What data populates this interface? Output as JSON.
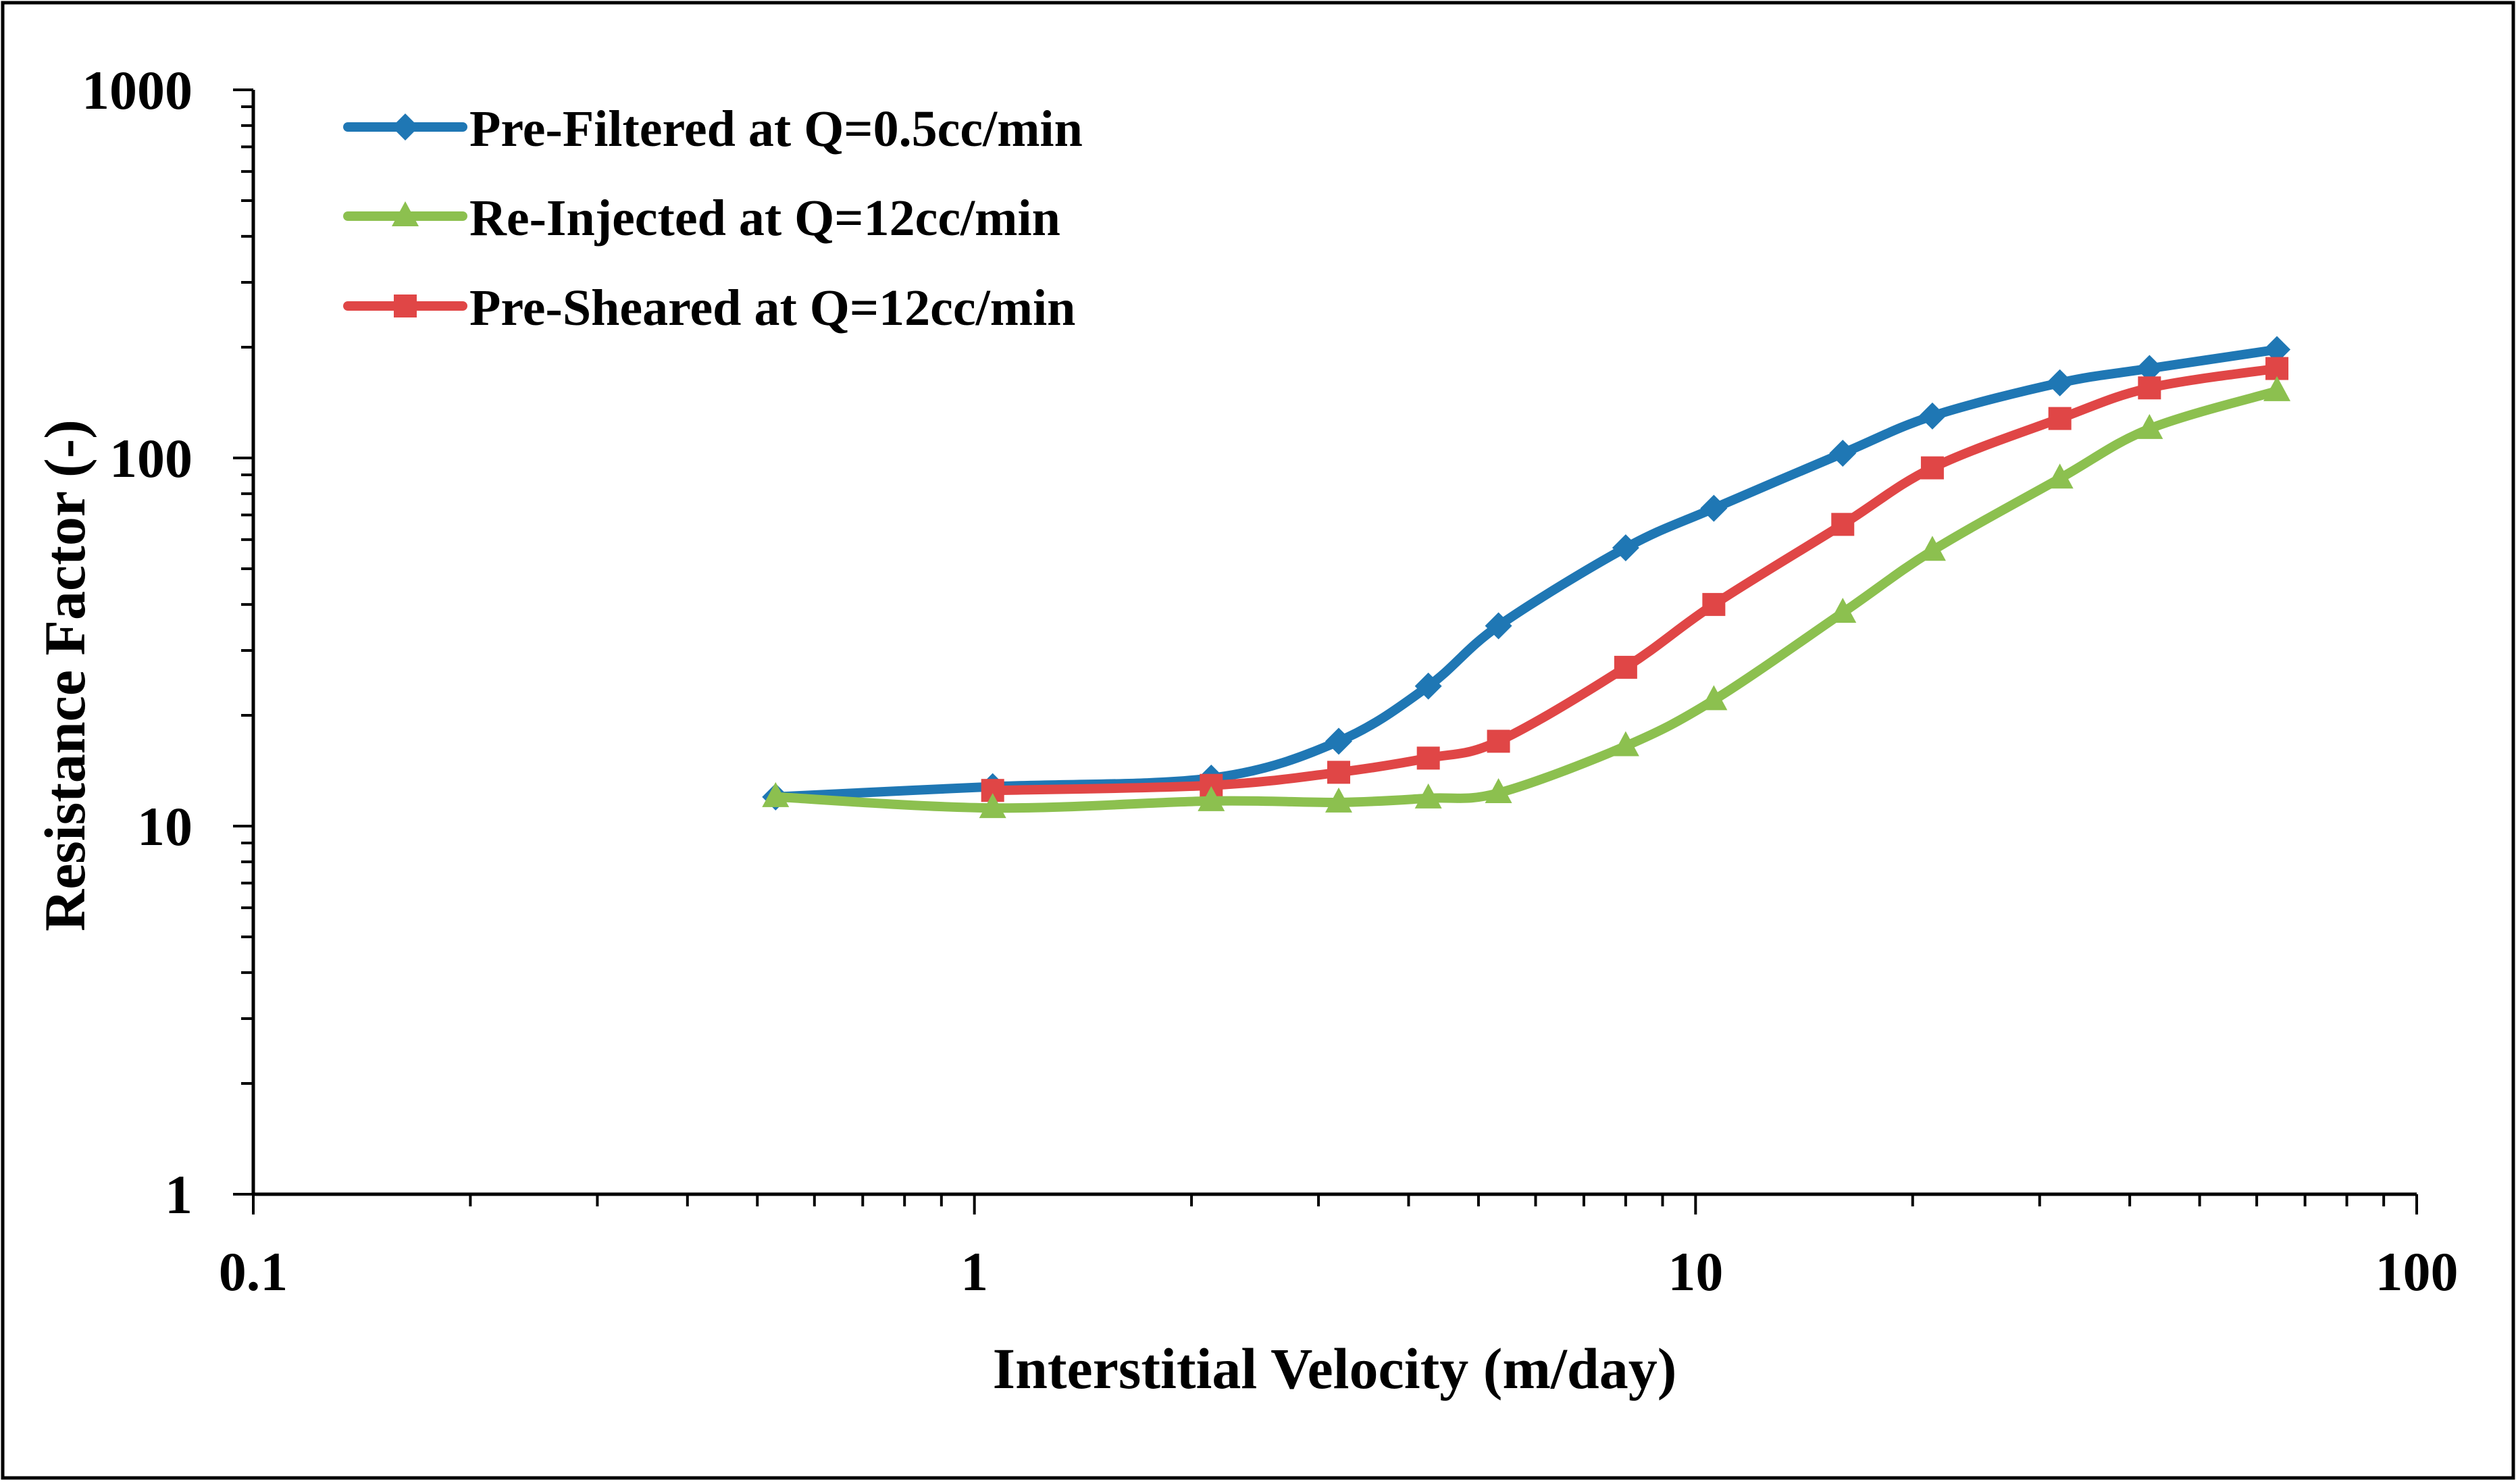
{
  "chart_data": {
    "type": "line",
    "title": "",
    "xlabel": "Interstitial Velocity (m/day)",
    "ylabel": "Resistance Factor (-)",
    "x_scale": "log",
    "y_scale": "log",
    "xlim": [
      0.1,
      100
    ],
    "ylim": [
      1,
      1000
    ],
    "x_ticks": [
      0.1,
      1,
      10,
      100
    ],
    "x_tick_labels": [
      "0.1",
      "1",
      "10",
      "100"
    ],
    "y_ticks": [
      1,
      10,
      100,
      1000
    ],
    "y_tick_labels": [
      "1",
      "10",
      "100",
      "1000"
    ],
    "grid": false,
    "legend_position": "top-left",
    "series": [
      {
        "name": "Pre-Filtered at Q=0.5cc/min",
        "color": "#1f77b4",
        "marker": "diamond",
        "x": [
          0.53,
          1.06,
          2.13,
          3.2,
          4.26,
          5.33,
          8.0,
          10.6,
          16.0,
          21.3,
          32.0,
          42.6,
          64.0
        ],
        "y": [
          12.0,
          12.8,
          13.5,
          17.0,
          24.0,
          35.0,
          57.0,
          73.0,
          103.0,
          130.0,
          160.0,
          175.0,
          197.0
        ]
      },
      {
        "name": "Re-Injected at Q=12cc/min",
        "color": "#8cc04f",
        "marker": "triangle",
        "x": [
          0.53,
          1.06,
          2.13,
          3.2,
          4.26,
          5.33,
          8.0,
          10.6,
          16.0,
          21.3,
          32.0,
          42.6,
          64.0
        ],
        "y": [
          12.0,
          11.2,
          11.7,
          11.6,
          11.9,
          12.3,
          16.5,
          22.0,
          38.0,
          56.0,
          88.0,
          120.0,
          152.0
        ]
      },
      {
        "name": "Pre-Sheared at Q=12cc/min",
        "color": "#e04646",
        "marker": "square",
        "x": [
          1.06,
          2.13,
          3.2,
          4.26,
          5.33,
          8.0,
          10.6,
          16.0,
          21.3,
          32.0,
          42.6,
          64.0
        ],
        "y": [
          12.5,
          12.9,
          14.0,
          15.3,
          17.0,
          27.0,
          40.0,
          66.0,
          94.0,
          128.0,
          155.0,
          175.0
        ]
      }
    ]
  }
}
